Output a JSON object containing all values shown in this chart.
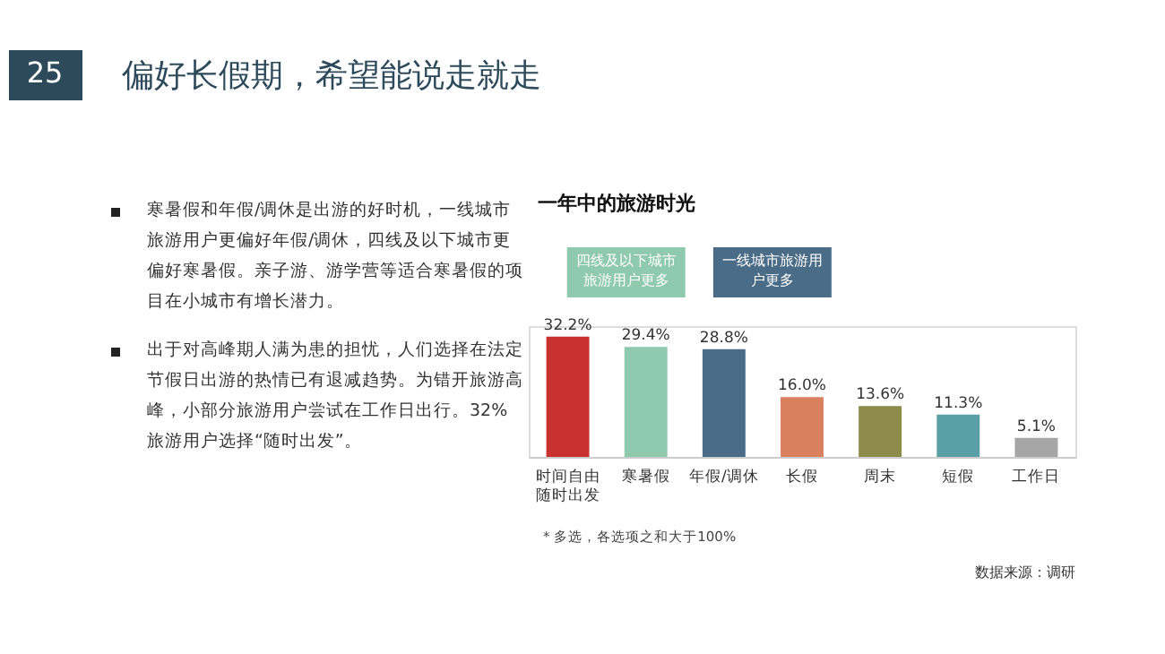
{
  "chart_data": {
    "type": "bar",
    "title": "偏好长假期，希望能说走就走",
    "subtitle": "一年中的旅游时光",
    "categories": [
      "时间自由随时出发",
      "寒暑假",
      "年假/调休",
      "长假",
      "周末",
      "短假",
      "工作日"
    ],
    "values": [
      32.2,
      29.4,
      28.8,
      16.0,
      13.6,
      11.3,
      5.1
    ],
    "colors": [
      "#c8312f",
      "#8fc9ae",
      "#4a6c87",
      "#d9805f",
      "#8e8a4a",
      "#5a9ea6",
      "#a6a6a6"
    ],
    "value_labels": [
      "32.2%",
      "29.4%",
      "28.8%",
      "16.0%",
      "13.6%",
      "11.3%",
      "5.1%"
    ],
    "annotations": [
      "25",
      "寒暑假和年假/调休是出游的好时机，一线城市旅游用户更偏好年假/调休，四线及以下城市更偏好寒暑假。亲子游、游学营等适合寒暑假的项目在小城市有增长潜力。",
      "出于对高峰期人满为患的担忧，人们选择在法定节假日出游的热情已有退减趋势。为错开旅游高峰，小部分旅游用户尝试在工作日出行。32%旅游用户选择“随时出发”。",
      "四线及以下城市旅游用户更多",
      "一线城市旅游用户更多",
      "*  多选，各选项之和大于100%",
      "数据来源：调研"
    ],
    "grid": false
  }
}
